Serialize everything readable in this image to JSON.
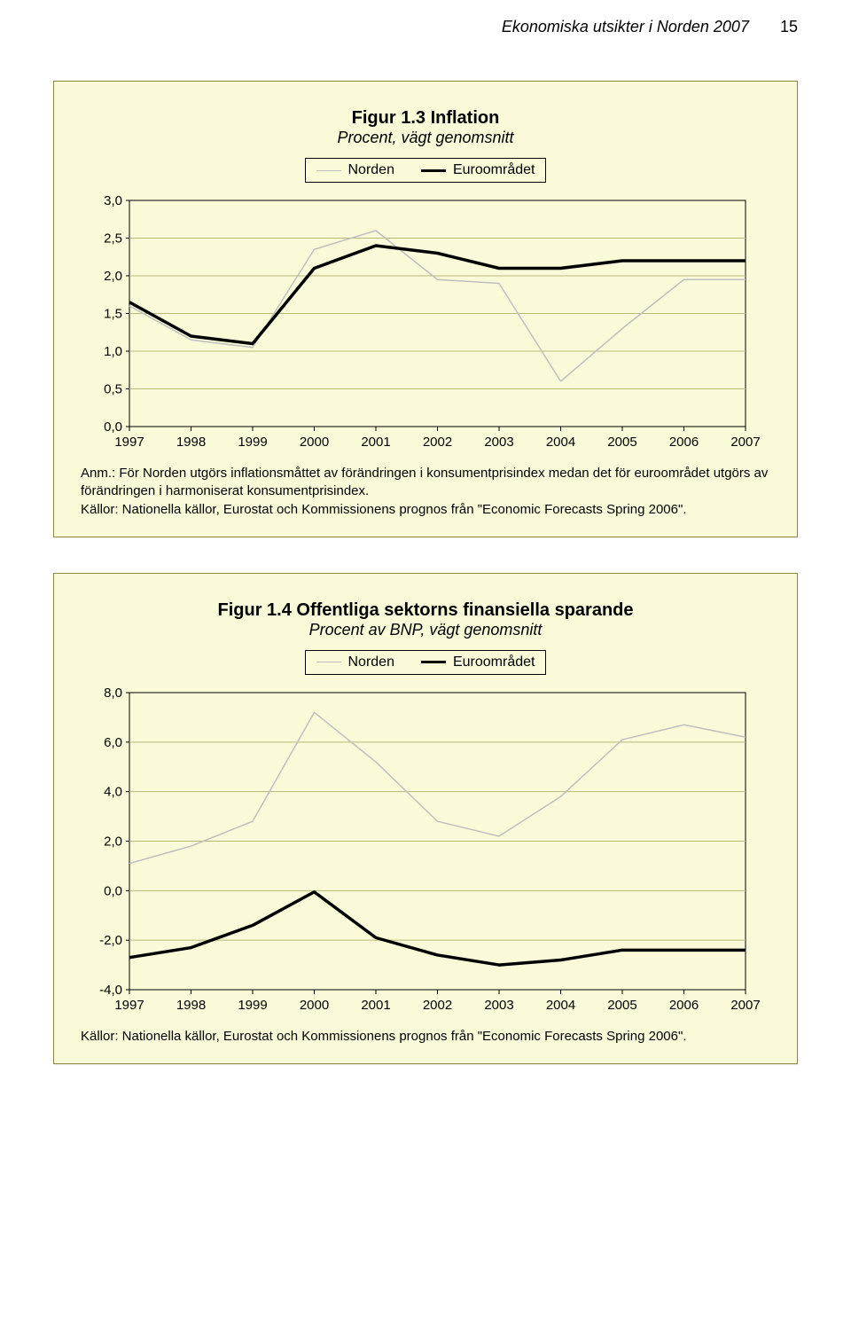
{
  "header": {
    "title": "Ekonomiska utsikter i Norden 2007",
    "page_number": "15"
  },
  "fig1": {
    "title": "Figur 1.3 Inflation",
    "subtitle": "Procent, vägt genomsnitt",
    "legend": {
      "series_a": "Norden",
      "series_b": "Euroområdet"
    },
    "years": [
      "1997",
      "1998",
      "1999",
      "2000",
      "2001",
      "2002",
      "2003",
      "2004",
      "2005",
      "2006",
      "2007"
    ],
    "y_ticks": [
      "0,0",
      "0,5",
      "1,0",
      "1,5",
      "2,0",
      "2,5",
      "3,0"
    ],
    "y_min": 0.0,
    "y_max": 3.0,
    "y_step": 0.5,
    "series": {
      "norden": {
        "color": "#bfbfbf",
        "width": 1.5,
        "values": [
          1.6,
          1.15,
          1.05,
          2.35,
          2.6,
          1.95,
          1.9,
          0.6,
          1.3,
          1.95,
          1.95
        ]
      },
      "euro": {
        "color": "#000000",
        "width": 3.5,
        "values": [
          1.65,
          1.2,
          1.1,
          2.1,
          2.4,
          2.3,
          2.1,
          2.1,
          2.2,
          2.2,
          2.2
        ]
      }
    },
    "background_color": "#fafad8",
    "grid_color": "#b8b87a",
    "axis_color": "#000000",
    "label_fontsize": 15,
    "footnote": "Anm.: För Norden utgörs inflationsmåttet av förändringen i konsumentprisindex medan det för euroområdet utgörs av förändringen i harmoniserat konsumentprisindex.\nKällor: Nationella källor, Eurostat och Kommissionens prognos från \"Economic Forecasts Spring 2006\"."
  },
  "fig2": {
    "title": "Figur 1.4 Offentliga sektorns finansiella sparande",
    "subtitle": "Procent av BNP, vägt genomsnitt",
    "legend": {
      "series_a": "Norden",
      "series_b": "Euroområdet"
    },
    "years": [
      "1997",
      "1998",
      "1999",
      "2000",
      "2001",
      "2002",
      "2003",
      "2004",
      "2005",
      "2006",
      "2007"
    ],
    "y_ticks": [
      "-4,0",
      "-2,0",
      "0,0",
      "2,0",
      "4,0",
      "6,0",
      "8,0"
    ],
    "y_min": -4.0,
    "y_max": 8.0,
    "y_step": 2.0,
    "series": {
      "norden": {
        "color": "#bfbfbf",
        "width": 1.5,
        "values": [
          1.1,
          1.8,
          2.8,
          7.2,
          5.2,
          2.8,
          2.2,
          3.8,
          6.1,
          6.7,
          6.2
        ]
      },
      "euro": {
        "color": "#000000",
        "width": 3.5,
        "values": [
          -2.7,
          -2.3,
          -1.4,
          -0.05,
          -1.9,
          -2.6,
          -3.0,
          -2.8,
          -2.4,
          -2.4,
          -2.4
        ]
      }
    },
    "background_color": "#fafad8",
    "grid_color": "#b8b87a",
    "axis_color": "#000000",
    "label_fontsize": 15,
    "footnote": "Källor: Nationella källor, Eurostat och Kommissionens prognos från \"Economic Forecasts Spring 2006\"."
  }
}
